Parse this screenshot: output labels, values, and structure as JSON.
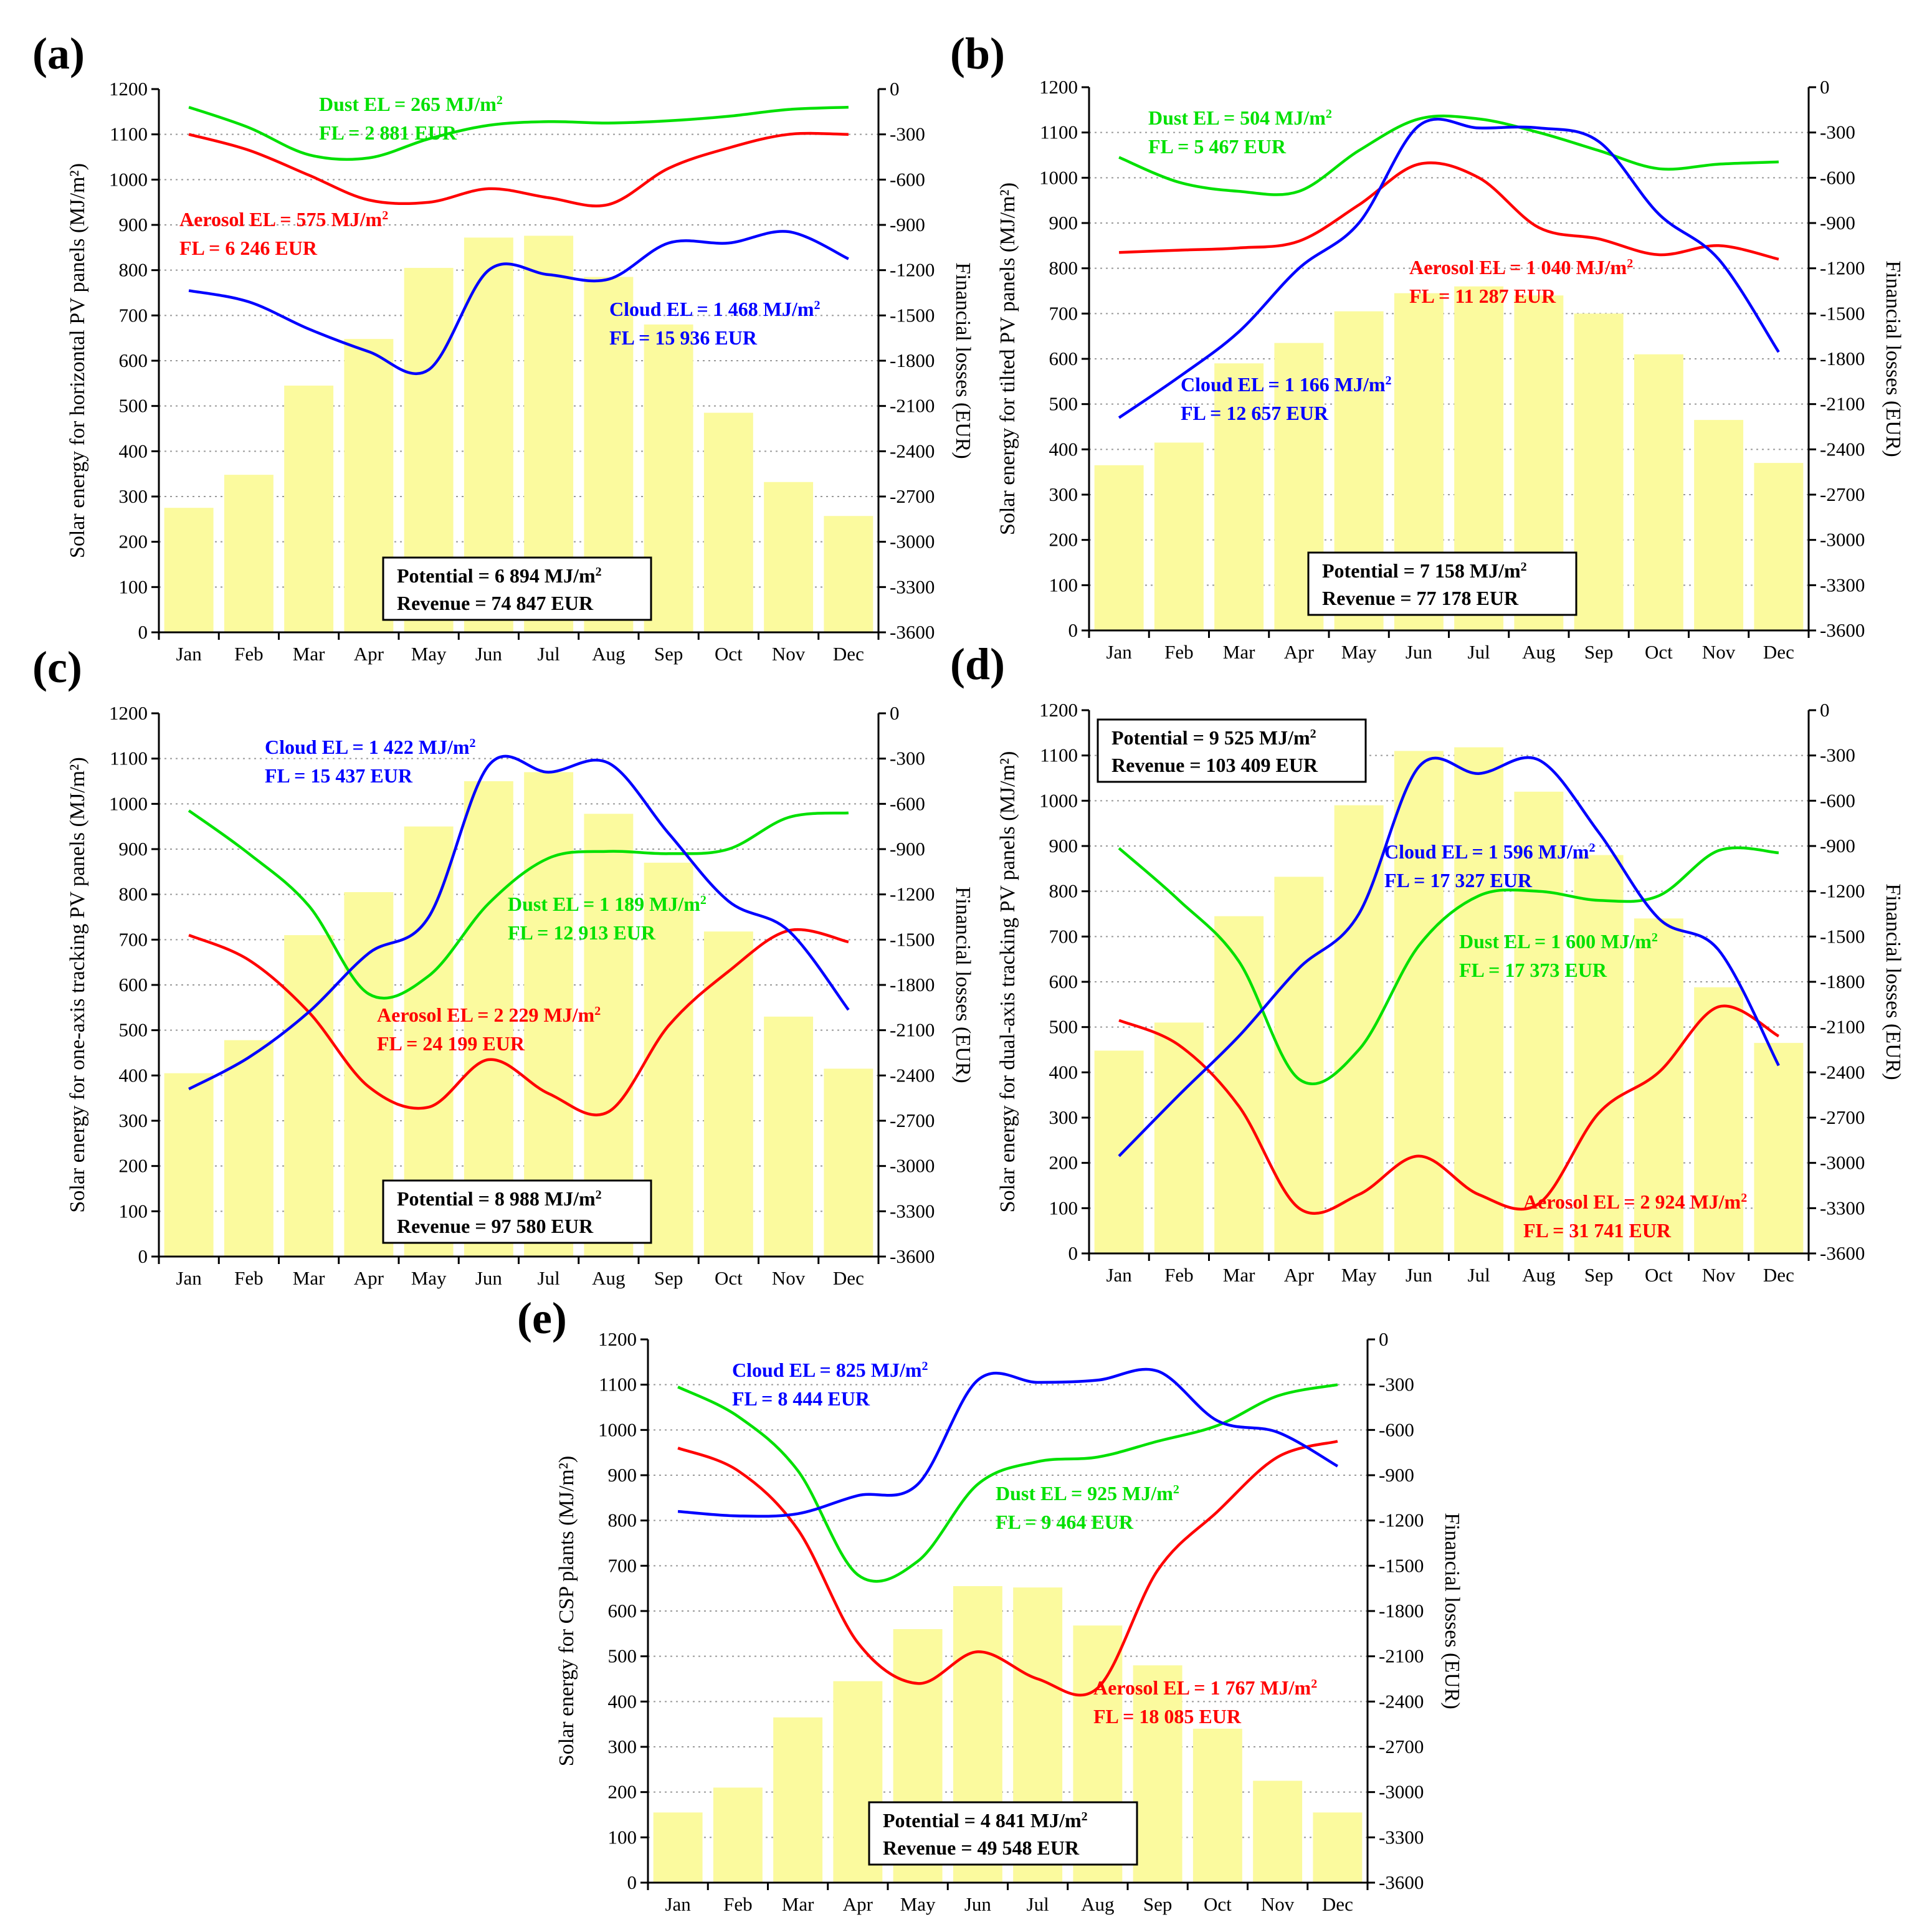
{
  "colors": {
    "bar": "#fbfa9e",
    "cloud": "#0000ff",
    "aerosol": "#ff0000",
    "dust": "#00e000",
    "axis": "#000000",
    "grid": "#9a9a9a"
  },
  "chart_data": [
    {
      "id": "a",
      "panel_label": "(a)",
      "type": "bar",
      "categories": [
        "Jan",
        "Feb",
        "Mar",
        "Apr",
        "May",
        "Jun",
        "Jul",
        "Aug",
        "Sep",
        "Oct",
        "Nov",
        "Dec"
      ],
      "values": [
        275,
        348,
        545,
        648,
        805,
        872,
        876,
        785,
        680,
        485,
        332,
        257
      ],
      "ylabel": "Solar energy for horizontal PV panels (MJ/m²)",
      "y2label": "Financial losses (EUR)",
      "ylim": [
        0,
        1200
      ],
      "y2lim": [
        -3600,
        0
      ],
      "yticks": [
        0,
        100,
        200,
        300,
        400,
        500,
        600,
        700,
        800,
        900,
        1000,
        1100,
        1200
      ],
      "y2ticks": [
        0,
        -300,
        -600,
        -900,
        -1200,
        -1500,
        -1800,
        -2100,
        -2400,
        -2700,
        -3000,
        -3300,
        -3600
      ],
      "series": [
        {
          "name": "Dust",
          "color_key": "dust",
          "values": [
            1160,
            1115,
            1055,
            1048,
            1090,
            1120,
            1128,
            1125,
            1130,
            1140,
            1155,
            1160
          ]
        },
        {
          "name": "Aerosol",
          "color_key": "aerosol",
          "values": [
            1100,
            1065,
            1010,
            955,
            950,
            980,
            960,
            945,
            1025,
            1070,
            1100,
            1100
          ]
        },
        {
          "name": "Cloud",
          "color_key": "cloud",
          "values": [
            755,
            730,
            670,
            620,
            580,
            800,
            790,
            780,
            860,
            860,
            885,
            825
          ]
        }
      ],
      "annotations": [
        {
          "color_key": "dust",
          "line1": "Dust EL = 265 MJ/m",
          "sup": "2",
          "line2": "FL = 2 881 EUR"
        },
        {
          "color_key": "aerosol",
          "line1": "Aerosol EL = 575 MJ/m",
          "sup": "2",
          "line2": "FL = 6 246 EUR"
        },
        {
          "color_key": "cloud",
          "line1": "Cloud EL = 1 468 MJ/m",
          "sup": "2",
          "line2": "FL = 15 936 EUR"
        }
      ],
      "box": {
        "line1": "Potential = 6 894 MJ/m",
        "sup": "2",
        "line2": "Revenue  = 74 847 EUR"
      }
    },
    {
      "id": "b",
      "panel_label": "(b)",
      "type": "bar",
      "categories": [
        "Jan",
        "Feb",
        "Mar",
        "Apr",
        "May",
        "Jun",
        "Jul",
        "Aug",
        "Sep",
        "Oct",
        "Nov",
        "Dec"
      ],
      "values": [
        365,
        415,
        590,
        635,
        705,
        745,
        760,
        740,
        700,
        610,
        465,
        370
      ],
      "ylabel": "Solar energy for tilted PV panels (MJ/m²)",
      "y2label": "Financial losses (EUR)",
      "ylim": [
        0,
        1200
      ],
      "y2lim": [
        -3600,
        0
      ],
      "yticks": [
        0,
        100,
        200,
        300,
        400,
        500,
        600,
        700,
        800,
        900,
        1000,
        1100,
        1200
      ],
      "y2ticks": [
        0,
        -300,
        -600,
        -900,
        -1200,
        -1500,
        -1800,
        -2100,
        -2400,
        -2700,
        -3000,
        -3300,
        -3600
      ],
      "series": [
        {
          "name": "Dust",
          "color_key": "dust",
          "values": [
            1045,
            990,
            970,
            970,
            1060,
            1130,
            1130,
            1100,
            1060,
            1020,
            1030,
            1035
          ]
        },
        {
          "name": "Aerosol",
          "color_key": "aerosol",
          "values": [
            835,
            840,
            845,
            860,
            940,
            1030,
            1000,
            890,
            865,
            830,
            850,
            820
          ]
        },
        {
          "name": "Cloud",
          "color_key": "cloud",
          "values": [
            470,
            560,
            660,
            800,
            900,
            1115,
            1110,
            1110,
            1080,
            920,
            820,
            615
          ]
        }
      ],
      "annotations": [
        {
          "color_key": "dust",
          "line1": "Dust EL = 504 MJ/m",
          "sup": "2",
          "line2": "FL = 5 467 EUR"
        },
        {
          "color_key": "aerosol",
          "line1": "Aerosol EL = 1 040 MJ/m",
          "sup": "2",
          "line2": "FL = 11 287 EUR"
        },
        {
          "color_key": "cloud",
          "line1": "Cloud EL = 1 166 MJ/m",
          "sup": "2",
          "line2": "FL = 12 657 EUR"
        }
      ],
      "box": {
        "line1": "Potential = 7 158 MJ/m",
        "sup": "2",
        "line2": "Revenue  = 77 178 EUR"
      }
    },
    {
      "id": "c",
      "panel_label": "(c)",
      "type": "bar",
      "categories": [
        "Jan",
        "Feb",
        "Mar",
        "Apr",
        "May",
        "Jun",
        "Jul",
        "Aug",
        "Sep",
        "Oct",
        "Nov",
        "Dec"
      ],
      "values": [
        405,
        478,
        710,
        805,
        950,
        1050,
        1070,
        978,
        870,
        718,
        530,
        415
      ],
      "ylabel": "Solar energy for one-axis tracking PV panels (MJ/m²)",
      "y2label": "Financial losses (EUR)",
      "ylim": [
        0,
        1200
      ],
      "y2lim": [
        -3600,
        0
      ],
      "yticks": [
        0,
        100,
        200,
        300,
        400,
        500,
        600,
        700,
        800,
        900,
        1000,
        1100,
        1200
      ],
      "y2ticks": [
        0,
        -300,
        -600,
        -900,
        -1200,
        -1500,
        -1800,
        -2100,
        -2400,
        -2700,
        -3000,
        -3300,
        -3600
      ],
      "series": [
        {
          "name": "Dust",
          "color_key": "dust",
          "values": [
            985,
            890,
            775,
            580,
            620,
            780,
            880,
            895,
            890,
            900,
            970,
            980
          ]
        },
        {
          "name": "Aerosol",
          "color_key": "aerosol",
          "values": [
            710,
            655,
            540,
            375,
            330,
            435,
            360,
            320,
            510,
            630,
            720,
            695
          ]
        },
        {
          "name": "Cloud",
          "color_key": "cloud",
          "values": [
            370,
            440,
            540,
            670,
            750,
            1085,
            1070,
            1090,
            935,
            785,
            720,
            545
          ]
        }
      ],
      "annotations": [
        {
          "color_key": "cloud",
          "line1": "Cloud EL = 1 422 MJ/m",
          "sup": "2",
          "line2": "FL = 15 437 EUR"
        },
        {
          "color_key": "dust",
          "line1": "Dust EL = 1 189 MJ/m",
          "sup": "2",
          "line2": "FL = 12 913 EUR"
        },
        {
          "color_key": "aerosol",
          "line1": "Aerosol EL = 2 229 MJ/m",
          "sup": "2",
          "line2": "FL = 24 199 EUR"
        }
      ],
      "box": {
        "line1": "Potential = 8 988 MJ/m",
        "sup": "2",
        "line2": "Revenue  = 97 580 EUR"
      }
    },
    {
      "id": "d",
      "panel_label": "(d)",
      "type": "bar",
      "categories": [
        "Jan",
        "Feb",
        "Mar",
        "Apr",
        "May",
        "Jun",
        "Jul",
        "Aug",
        "Sep",
        "Oct",
        "Nov",
        "Dec"
      ],
      "values": [
        448,
        510,
        745,
        832,
        990,
        1110,
        1118,
        1020,
        880,
        740,
        588,
        465
      ],
      "ylabel": "Solar energy for dual-axis tracking PV panels (MJ/m²)",
      "y2label": "Financial losses (EUR)",
      "ylim": [
        0,
        1200
      ],
      "y2lim": [
        -3600,
        0
      ],
      "yticks": [
        0,
        100,
        200,
        300,
        400,
        500,
        600,
        700,
        800,
        900,
        1000,
        1100,
        1200
      ],
      "y2ticks": [
        0,
        -300,
        -600,
        -900,
        -1200,
        -1500,
        -1800,
        -2100,
        -2400,
        -2700,
        -3000,
        -3300,
        -3600
      ],
      "series": [
        {
          "name": "Dust",
          "color_key": "dust",
          "values": [
            895,
            780,
            645,
            385,
            450,
            680,
            790,
            800,
            780,
            790,
            890,
            885
          ]
        },
        {
          "name": "Aerosol",
          "color_key": "aerosol",
          "values": [
            515,
            460,
            325,
            100,
            130,
            215,
            130,
            110,
            310,
            400,
            545,
            480
          ]
        },
        {
          "name": "Cloud",
          "color_key": "cloud",
          "values": [
            215,
            350,
            480,
            630,
            750,
            1075,
            1060,
            1090,
            930,
            740,
            670,
            415
          ]
        }
      ],
      "annotations": [
        {
          "color_key": "cloud",
          "line1": "Cloud EL = 1 596 MJ/m",
          "sup": "2",
          "line2": "FL = 17 327 EUR"
        },
        {
          "color_key": "dust",
          "line1": "Dust EL = 1 600 MJ/m",
          "sup": "2",
          "line2": "FL = 17 373 EUR"
        },
        {
          "color_key": "aerosol",
          "line1": "Aerosol EL = 2 924 MJ/m",
          "sup": "2",
          "line2": "FL = 31 741 EUR"
        }
      ],
      "box": {
        "line1": "Potential = 9 525 MJ/m",
        "sup": "2",
        "line2": "Revenue  = 103 409 EUR"
      }
    },
    {
      "id": "e",
      "panel_label": "(e)",
      "type": "bar",
      "categories": [
        "Jan",
        "Feb",
        "Mar",
        "Apr",
        "May",
        "Jun",
        "Jul",
        "Aug",
        "Sep",
        "Oct",
        "Nov",
        "Dec"
      ],
      "values": [
        155,
        210,
        365,
        445,
        560,
        655,
        652,
        568,
        480,
        340,
        225,
        155
      ],
      "ylabel": "Solar energy for CSP plants (MJ/m²)",
      "y2label": "Financial losses (EUR)",
      "ylim": [
        0,
        1200
      ],
      "y2lim": [
        -3600,
        0
      ],
      "yticks": [
        0,
        100,
        200,
        300,
        400,
        500,
        600,
        700,
        800,
        900,
        1000,
        1100,
        1200
      ],
      "y2ticks": [
        0,
        -300,
        -600,
        -900,
        -1200,
        -1500,
        -1800,
        -2100,
        -2400,
        -2700,
        -3000,
        -3300,
        -3600
      ],
      "series": [
        {
          "name": "Dust",
          "color_key": "dust",
          "values": [
            1095,
            1030,
            910,
            680,
            710,
            880,
            930,
            940,
            975,
            1010,
            1075,
            1100
          ]
        },
        {
          "name": "Aerosol",
          "color_key": "aerosol",
          "values": [
            960,
            910,
            780,
            530,
            440,
            510,
            450,
            430,
            690,
            820,
            940,
            975
          ]
        },
        {
          "name": "Cloud",
          "color_key": "cloud",
          "values": [
            820,
            810,
            815,
            855,
            880,
            1110,
            1105,
            1110,
            1130,
            1020,
            995,
            920
          ]
        }
      ],
      "annotations": [
        {
          "color_key": "cloud",
          "line1": "Cloud EL = 825 MJ/m",
          "sup": "2",
          "line2": "FL = 8 444 EUR"
        },
        {
          "color_key": "dust",
          "line1": "Dust EL = 925 MJ/m",
          "sup": "2",
          "line2": "FL = 9 464 EUR"
        },
        {
          "color_key": "aerosol",
          "line1": "Aerosol EL = 1 767 MJ/m",
          "sup": "2",
          "line2": "FL = 18 085 EUR"
        }
      ],
      "box": {
        "line1": "Potential = 4 841 MJ/m",
        "sup": "2",
        "line2": "Revenue  = 49 548 EUR"
      }
    }
  ]
}
